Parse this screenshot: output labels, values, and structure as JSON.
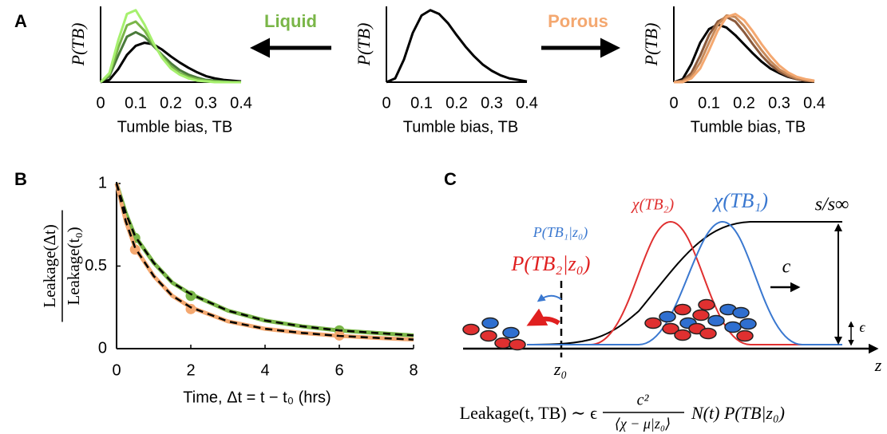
{
  "panel_labels": [
    "A",
    "B",
    "C"
  ],
  "arrows": {
    "liquid": {
      "text": "Liquid",
      "color": "#7ab648"
    },
    "porous": {
      "text": "Porous",
      "color": "#f4a870"
    }
  },
  "chart_data": [
    {
      "type": "line",
      "y_label": "P(TB)",
      "x_label": "Tumble bias, TB",
      "xlim": [
        0,
        0.4
      ],
      "xticks": [
        0,
        0.1,
        0.2,
        0.3,
        0.4
      ],
      "ylim": [
        0,
        1
      ],
      "x": [
        0,
        0.025,
        0.05,
        0.075,
        0.1,
        0.125,
        0.15,
        0.175,
        0.2,
        0.225,
        0.25,
        0.275,
        0.3,
        0.325,
        0.35,
        0.375,
        0.4
      ],
      "series": [
        {
          "color": "#000000",
          "values": [
            0,
            0.03,
            0.17,
            0.36,
            0.48,
            0.52,
            0.5,
            0.43,
            0.34,
            0.26,
            0.19,
            0.13,
            0.08,
            0.05,
            0.03,
            0.02,
            0.01
          ]
        },
        {
          "color": "#4a7a3a",
          "values": [
            0,
            0.08,
            0.35,
            0.6,
            0.66,
            0.6,
            0.48,
            0.36,
            0.25,
            0.16,
            0.1,
            0.06,
            0.03,
            0.02,
            0.01,
            0,
            0
          ]
        },
        {
          "color": "#7ab648",
          "values": [
            0,
            0.1,
            0.45,
            0.75,
            0.8,
            0.68,
            0.5,
            0.34,
            0.21,
            0.12,
            0.07,
            0.04,
            0.02,
            0.01,
            0,
            0,
            0
          ]
        },
        {
          "color": "#a6f06e",
          "values": [
            0,
            0.12,
            0.55,
            0.9,
            0.95,
            0.76,
            0.52,
            0.32,
            0.18,
            0.1,
            0.05,
            0.02,
            0.01,
            0,
            0,
            0,
            0
          ]
        }
      ]
    },
    {
      "type": "line",
      "y_label": "P(TB)",
      "x_label": "Tumble bias, TB",
      "xlim": [
        0,
        0.4
      ],
      "xticks": [
        0,
        0.1,
        0.2,
        0.3,
        0.4
      ],
      "ylim": [
        0,
        1
      ],
      "x": [
        0,
        0.025,
        0.05,
        0.075,
        0.1,
        0.125,
        0.15,
        0.175,
        0.2,
        0.225,
        0.25,
        0.275,
        0.3,
        0.325,
        0.35,
        0.375,
        0.4
      ],
      "series": [
        {
          "color": "#000000",
          "values": [
            0,
            0.05,
            0.3,
            0.65,
            0.88,
            0.95,
            0.9,
            0.78,
            0.62,
            0.47,
            0.34,
            0.23,
            0.15,
            0.09,
            0.05,
            0.03,
            0.01
          ]
        }
      ]
    },
    {
      "type": "line",
      "y_label": "P(TB)",
      "x_label": "Tumble bias, TB",
      "xlim": [
        0,
        0.4
      ],
      "xticks": [
        0,
        0.1,
        0.2,
        0.3,
        0.4
      ],
      "ylim": [
        0,
        1
      ],
      "x": [
        0,
        0.025,
        0.05,
        0.075,
        0.1,
        0.125,
        0.15,
        0.175,
        0.2,
        0.225,
        0.25,
        0.275,
        0.3,
        0.325,
        0.35,
        0.375,
        0.4
      ],
      "series": [
        {
          "color": "#000000",
          "values": [
            0,
            0.04,
            0.24,
            0.52,
            0.7,
            0.76,
            0.72,
            0.62,
            0.5,
            0.38,
            0.27,
            0.18,
            0.12,
            0.07,
            0.04,
            0.02,
            0.01
          ]
        },
        {
          "color": "#8b5a3c",
          "values": [
            0,
            0.02,
            0.12,
            0.35,
            0.62,
            0.8,
            0.86,
            0.8,
            0.66,
            0.5,
            0.35,
            0.23,
            0.14,
            0.08,
            0.04,
            0.02,
            0.01
          ]
        },
        {
          "color": "#c88a5a",
          "values": [
            0,
            0.01,
            0.08,
            0.26,
            0.52,
            0.76,
            0.88,
            0.86,
            0.74,
            0.58,
            0.42,
            0.28,
            0.17,
            0.1,
            0.05,
            0.03,
            0.01
          ]
        },
        {
          "color": "#f4a870",
          "values": [
            0,
            0,
            0.05,
            0.18,
            0.42,
            0.68,
            0.86,
            0.9,
            0.82,
            0.67,
            0.5,
            0.35,
            0.22,
            0.13,
            0.07,
            0.04,
            0.02
          ]
        }
      ]
    },
    {
      "type": "line",
      "x_label": "Time, Δt = t − t₀ (hrs)",
      "y_label": {
        "numerator": "Leakage(Δt)",
        "denominator": "Leakage(t₀)"
      },
      "xlim": [
        0,
        8
      ],
      "xticks": [
        0,
        2,
        4,
        6,
        8
      ],
      "ylim": [
        0,
        1
      ],
      "yticks": [
        0,
        0.5,
        1
      ],
      "fit_color": "#000000",
      "x": [
        0,
        0.25,
        0.5,
        1,
        1.5,
        2,
        3,
        4,
        5,
        6,
        7,
        8
      ],
      "series": [
        {
          "color": "#7ab648",
          "values": [
            1,
            0.82,
            0.68,
            0.52,
            0.4,
            0.33,
            0.23,
            0.17,
            0.135,
            0.11,
            0.095,
            0.08
          ],
          "markers": {
            "x": [
              0.5,
              2,
              6
            ],
            "values": [
              0.67,
              0.32,
              0.11
            ]
          }
        },
        {
          "color": "#f4a870",
          "values": [
            1,
            0.77,
            0.61,
            0.44,
            0.32,
            0.25,
            0.165,
            0.12,
            0.095,
            0.077,
            0.065,
            0.055
          ],
          "markers": {
            "x": [
              0.5,
              2,
              6
            ],
            "values": [
              0.6,
              0.24,
              0.08
            ]
          }
        }
      ]
    }
  ],
  "diagram": {
    "chi_tb2": "χ(TB₂)",
    "chi_tb1": "χ(TB₁)",
    "s_ratio": "s/s∞",
    "p_tb1": "P(TB₁|z₀)",
    "p_tb2": "P(TB₂|z₀)",
    "c": "c",
    "epsilon": "ϵ",
    "z": "z",
    "z0": "z₀",
    "formula": {
      "left": "Leakage(t, TB) ∼ ϵ",
      "numerator": "c²",
      "denominator": "⟨χ − μ|z₀⟩",
      "right": "N(t) P(TB|z₀)"
    }
  }
}
